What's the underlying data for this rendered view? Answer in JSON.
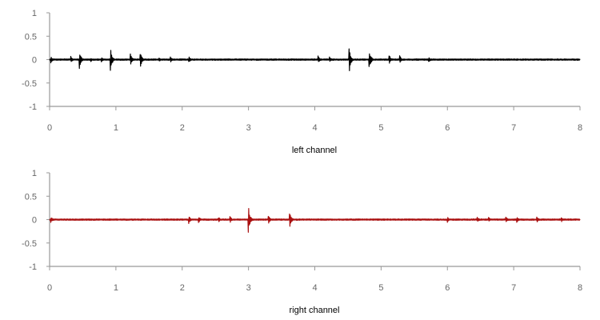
{
  "chart_data": [
    {
      "type": "line",
      "xlabel": "left channel",
      "ylabel": "",
      "xlim": [
        0,
        8
      ],
      "ylim": [
        -1,
        1
      ],
      "x_ticks": [
        "0",
        "1",
        "2",
        "3",
        "4",
        "5",
        "6",
        "7",
        "8"
      ],
      "y_ticks": [
        "1",
        "0.5",
        "0",
        "-0.5",
        "-1"
      ],
      "grid": false,
      "series": [
        {
          "color": "#000000",
          "noise_amplitude": 0.015,
          "transients": [
            {
              "x": 0.02,
              "peak": 0.07
            },
            {
              "x": 0.32,
              "peak": 0.08
            },
            {
              "x": 0.45,
              "peak": 0.22
            },
            {
              "x": 0.62,
              "peak": 0.05
            },
            {
              "x": 0.78,
              "peak": 0.06
            },
            {
              "x": 0.92,
              "peak": 0.25
            },
            {
              "x": 1.22,
              "peak": 0.14
            },
            {
              "x": 1.37,
              "peak": 0.16
            },
            {
              "x": 1.65,
              "peak": 0.05
            },
            {
              "x": 1.82,
              "peak": 0.07
            },
            {
              "x": 2.1,
              "peak": 0.07
            },
            {
              "x": 4.05,
              "peak": 0.08
            },
            {
              "x": 4.22,
              "peak": 0.06
            },
            {
              "x": 4.52,
              "peak": 0.28
            },
            {
              "x": 4.82,
              "peak": 0.27
            },
            {
              "x": 5.12,
              "peak": 0.12
            },
            {
              "x": 5.28,
              "peak": 0.1
            },
            {
              "x": 5.72,
              "peak": 0.06
            }
          ]
        }
      ]
    },
    {
      "type": "line",
      "xlabel": "right channel",
      "ylabel": "",
      "xlim": [
        0,
        8
      ],
      "ylim": [
        -1,
        1
      ],
      "x_ticks": [
        "0",
        "1",
        "2",
        "3",
        "4",
        "5",
        "6",
        "7",
        "8"
      ],
      "y_ticks": [
        "1",
        "0.5",
        "0",
        "-0.5",
        "-1"
      ],
      "grid": false,
      "series": [
        {
          "color": "#aa1111",
          "noise_amplitude": 0.015,
          "transients": [
            {
              "x": 0.02,
              "peak": 0.06
            },
            {
              "x": 2.1,
              "peak": 0.09
            },
            {
              "x": 2.25,
              "peak": 0.08
            },
            {
              "x": 2.55,
              "peak": 0.06
            },
            {
              "x": 2.72,
              "peak": 0.08
            },
            {
              "x": 3.0,
              "peak": 0.28
            },
            {
              "x": 3.3,
              "peak": 0.1
            },
            {
              "x": 3.62,
              "peak": 0.2
            },
            {
              "x": 6.0,
              "peak": 0.06
            },
            {
              "x": 6.45,
              "peak": 0.07
            },
            {
              "x": 6.62,
              "peak": 0.06
            },
            {
              "x": 6.88,
              "peak": 0.07
            },
            {
              "x": 7.05,
              "peak": 0.06
            },
            {
              "x": 7.35,
              "peak": 0.08
            },
            {
              "x": 7.72,
              "peak": 0.05
            }
          ]
        }
      ]
    }
  ]
}
